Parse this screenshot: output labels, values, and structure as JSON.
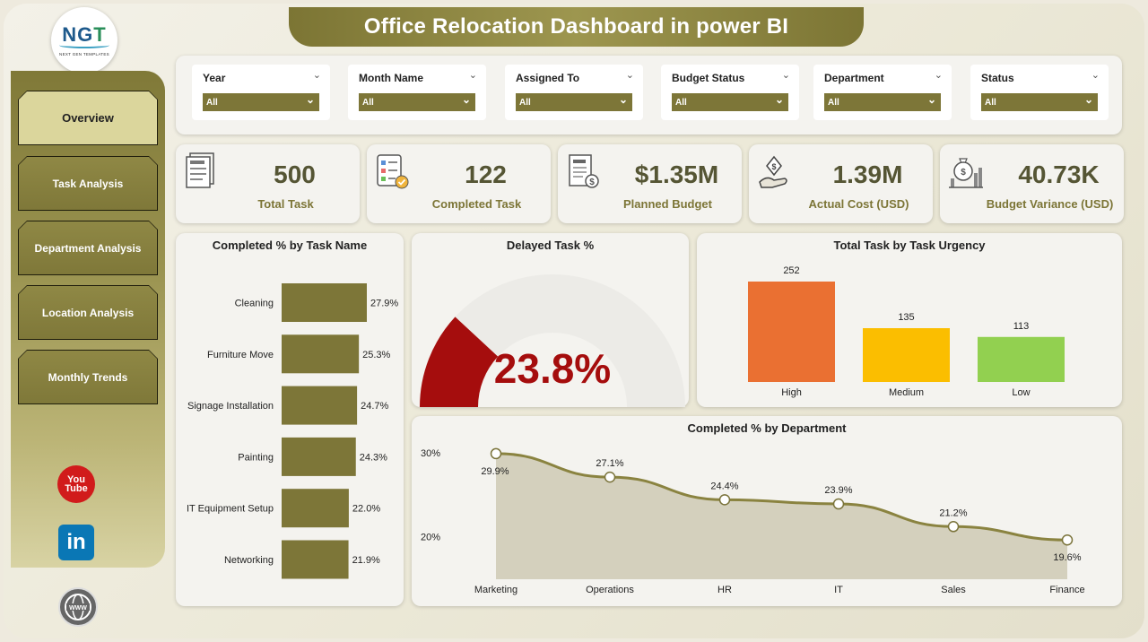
{
  "header": {
    "title": "Office Relocation Dashboard in power BI"
  },
  "logo": {
    "mark_main": "NG",
    "mark_accent": "T",
    "subtitle": "NEXT GEN TEMPLATES"
  },
  "sidebar": {
    "items": [
      {
        "label": "Overview",
        "active": true
      },
      {
        "label": "Task Analysis",
        "active": false
      },
      {
        "label": "Department Analysis",
        "active": false
      },
      {
        "label": "Location Analysis",
        "active": false
      },
      {
        "label": "Monthly Trends",
        "active": false
      }
    ],
    "social": {
      "youtube_you": "You",
      "youtube_tube": "Tube",
      "linkedin": "in",
      "web": "WWW"
    }
  },
  "filters": [
    {
      "label": "Year",
      "value": "All"
    },
    {
      "label": "Month Name",
      "value": "All"
    },
    {
      "label": "Assigned To",
      "value": "All"
    },
    {
      "label": "Budget Status",
      "value": "All"
    },
    {
      "label": "Department",
      "value": "All"
    },
    {
      "label": "Status",
      "value": "All"
    }
  ],
  "kpis": [
    {
      "value": "500",
      "label": "Total Task",
      "icon": "task-list-icon"
    },
    {
      "value": "122",
      "label": "Completed Task",
      "icon": "checklist-icon"
    },
    {
      "value": "$1.35M",
      "label": "Planned Budget",
      "icon": "budget-plan-icon"
    },
    {
      "value": "1.39M",
      "label": "Actual Cost (USD)",
      "icon": "money-hand-icon"
    },
    {
      "value": "40.73K",
      "label": "Budget Variance (USD)",
      "icon": "money-bag-chart-icon"
    }
  ],
  "colors": {
    "olive": "#7d7638",
    "gauge_fill": "#a50d0d",
    "high": "#ea7032",
    "medium": "#fbbe00",
    "low": "#92d050",
    "line": "#8a8340"
  },
  "chart_data": [
    {
      "type": "bar",
      "orientation": "horizontal",
      "title": "Completed % by Task Name",
      "categories": [
        "Cleaning",
        "Furniture Move",
        "Signage Installation",
        "Painting",
        "IT Equipment Setup",
        "Networking"
      ],
      "values": [
        27.9,
        25.3,
        24.7,
        24.3,
        22.0,
        21.9
      ],
      "data_labels": [
        "27.9%",
        "25.3%",
        "24.7%",
        "24.3%",
        "22.0%",
        "21.9%"
      ],
      "unit": "%"
    },
    {
      "type": "gauge",
      "title": "Delayed Task %",
      "value": 23.8,
      "max": 100,
      "display": "23.8%"
    },
    {
      "type": "bar",
      "title": "Total Task by Task Urgency",
      "categories": [
        "High",
        "Medium",
        "Low"
      ],
      "values": [
        252,
        135,
        113
      ],
      "ylim": [
        0,
        300
      ]
    },
    {
      "type": "area",
      "title": "Completed % by Department",
      "categories": [
        "Marketing",
        "Operations",
        "HR",
        "IT",
        "Sales",
        "Finance"
      ],
      "values": [
        29.9,
        27.1,
        24.4,
        23.9,
        21.2,
        19.6
      ],
      "data_labels": [
        "29.9%",
        "27.1%",
        "24.4%",
        "23.9%",
        "21.2%",
        "19.6%"
      ],
      "yticks": [
        "30%",
        "20%"
      ],
      "ylim": [
        18,
        31.5
      ]
    }
  ]
}
